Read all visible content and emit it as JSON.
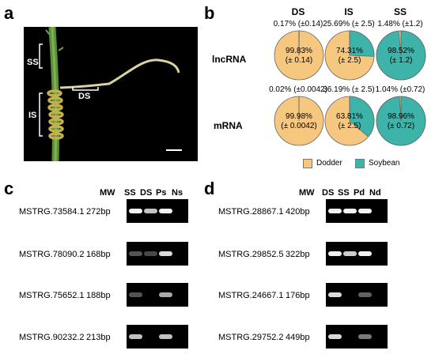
{
  "panels": {
    "a": "a",
    "b": "b",
    "c": "c",
    "d": "d"
  },
  "panel_a": {
    "labels": {
      "ss": "SS",
      "is": "IS",
      "ds": "DS"
    }
  },
  "panel_b": {
    "colors": {
      "dodder": "#F6C77E",
      "soybean": "#3DB3AA"
    },
    "columns": [
      "DS",
      "IS",
      "SS"
    ],
    "rows": [
      {
        "label": "lncRNA",
        "pies": [
          {
            "top": "0.17% (±0.14)",
            "center1": "99.83%",
            "center2": "(± 0.14)",
            "soybean_fraction": 0.0017,
            "center_color": "dodder"
          },
          {
            "top": "25.69% (± 2.5)",
            "center1": "74.31%",
            "center2": "(± 2.5)",
            "soybean_fraction": 0.2569,
            "center_color": "dodder"
          },
          {
            "top": "1.48% (±1.2)",
            "center1": "98.52%",
            "center2": "(± 1.2)",
            "soybean_fraction": 0.9852,
            "center_color": "soybean"
          }
        ]
      },
      {
        "label": "mRNA",
        "pies": [
          {
            "top": "0.02% (±0.0042)",
            "center1": "99.98%",
            "center2": "(± 0.0042)",
            "soybean_fraction": 0.0002,
            "center_color": "dodder"
          },
          {
            "top": "36.19% (± 2.5)",
            "center1": "63.81%",
            "center2": "(± 2.5)",
            "soybean_fraction": 0.3619,
            "center_color": "dodder"
          },
          {
            "top": "1.04% (±0.72)",
            "center1": "98.96%",
            "center2": "(± 0.72)",
            "soybean_fraction": 0.9896,
            "center_color": "soybean"
          }
        ]
      }
    ],
    "legend": {
      "dodder": "Dodder",
      "soybean": "Soybean"
    }
  },
  "panel_c": {
    "mw": "MW",
    "lanes": [
      "SS",
      "DS",
      "Ps",
      "Ns"
    ],
    "rows": [
      {
        "name": "MSTRG.73584.1",
        "size": "272bp",
        "bands": [
          1.0,
          0.8,
          1.0,
          0
        ]
      },
      {
        "name": "MSTRG.78090.2",
        "size": "168bp",
        "bands": [
          0.35,
          0.3,
          0.9,
          0
        ]
      },
      {
        "name": "MSTRG.75652.1",
        "size": "188bp",
        "bands": [
          0.35,
          0,
          0.7,
          0
        ]
      },
      {
        "name": "MSTRG.90232.2",
        "size": "213bp",
        "bands": [
          0.8,
          0,
          0.8,
          0
        ]
      }
    ]
  },
  "panel_d": {
    "mw": "MW",
    "lanes": [
      "DS",
      "SS",
      "Pd",
      "Nd"
    ],
    "rows": [
      {
        "name": "MSTRG.28867.1",
        "size": "420bp",
        "bands": [
          1.0,
          1.0,
          1.0,
          0
        ]
      },
      {
        "name": "MSTRG.29852.5",
        "size": "322bp",
        "bands": [
          1.0,
          0.85,
          1.0,
          0
        ]
      },
      {
        "name": "MSTRG.24667.1",
        "size": "176bp",
        "bands": [
          0.9,
          0,
          0.4,
          0
        ]
      },
      {
        "name": "MSTRG.29752.2",
        "size": "449bp",
        "bands": [
          0.9,
          0,
          0.5,
          0
        ]
      }
    ]
  }
}
